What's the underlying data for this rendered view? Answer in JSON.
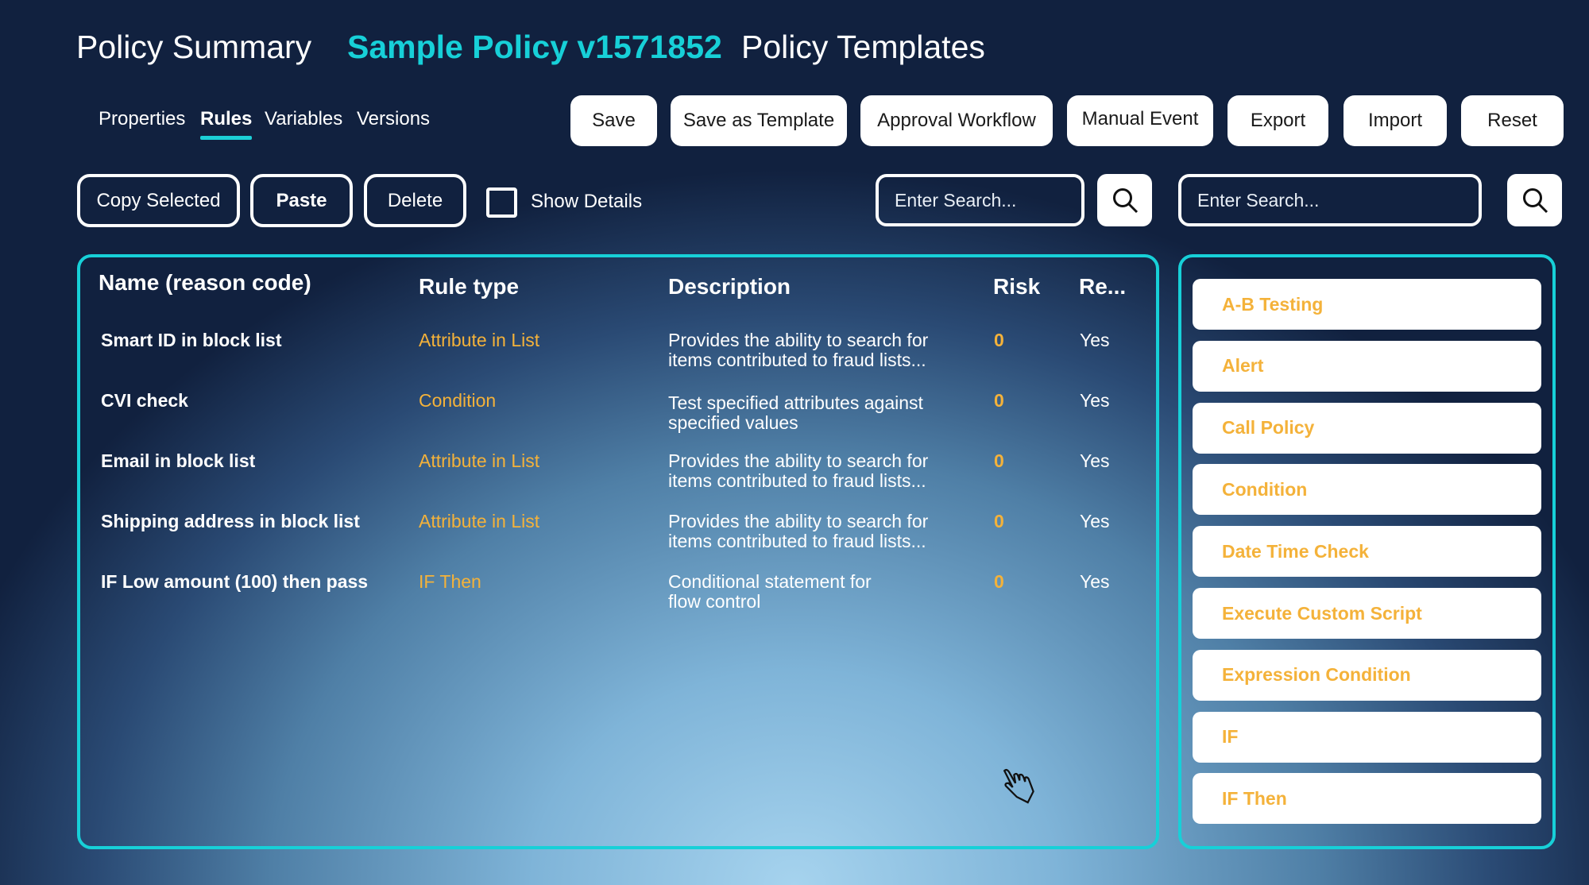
{
  "header": {
    "policy_summary": "Policy Summary",
    "policy_name": "Sample Policy v1571852",
    "policy_templates": "Policy Templates"
  },
  "tabs": [
    {
      "label": "Properties"
    },
    {
      "label": "Rules",
      "active": true
    },
    {
      "label": "Variables"
    },
    {
      "label": "Versions"
    }
  ],
  "toolbar": {
    "save": "Save",
    "save_template": "Save as Template",
    "approval": "Approval Workflow",
    "manual_event": "Manual Event",
    "export": "Export",
    "import": "Import",
    "reset": "Reset"
  },
  "actions": {
    "copy": "Copy Selected",
    "paste": "Paste",
    "delete": "Delete",
    "show_details": "Show Details",
    "show_details_checked": false
  },
  "search1": {
    "placeholder": "Enter Search..."
  },
  "search2": {
    "placeholder": "Enter Search..."
  },
  "table": {
    "headers": [
      "Name (reason code)",
      "Rule type",
      "Description",
      "Risk",
      "Re..."
    ],
    "rows": [
      {
        "name": "Smart ID in block list",
        "type": "Attribute in List",
        "desc1": "Provides the ability to search for",
        "desc2": "items contributed to fraud lists...",
        "risk": "0",
        "re": "Yes"
      },
      {
        "name": "CVI check",
        "type": "Condition",
        "desc1": "Test specified attributes against",
        "desc2": "specified values",
        "risk": "0",
        "re": "Yes"
      },
      {
        "name": "Email in block list",
        "type": "Attribute in List",
        "desc1": "Provides the ability to search for",
        "desc2": "items contributed to fraud lists...",
        "risk": "0",
        "re": "Yes"
      },
      {
        "name": "Shipping address in block list",
        "type": "Attribute in List",
        "desc1": "Provides the ability to search for",
        "desc2": "items contributed to fraud lists...",
        "risk": "0",
        "re": "Yes"
      },
      {
        "name": "IF Low amount (100) then pass",
        "type": "IF Then",
        "desc1": "Conditional statement for",
        "desc2": "flow control",
        "risk": "0",
        "re": "Yes"
      }
    ]
  },
  "templates": [
    "A-B Testing",
    "Alert",
    "Call Policy",
    "Condition",
    "Date Time Check",
    "Execute Custom Script",
    "Expression Condition",
    "IF",
    "IF Then"
  ],
  "colors": {
    "accent": "#17d0d8",
    "rule_type": "#f4b23a"
  },
  "icons": {
    "search": "search-icon",
    "cursor": "hand-pointer-icon"
  }
}
